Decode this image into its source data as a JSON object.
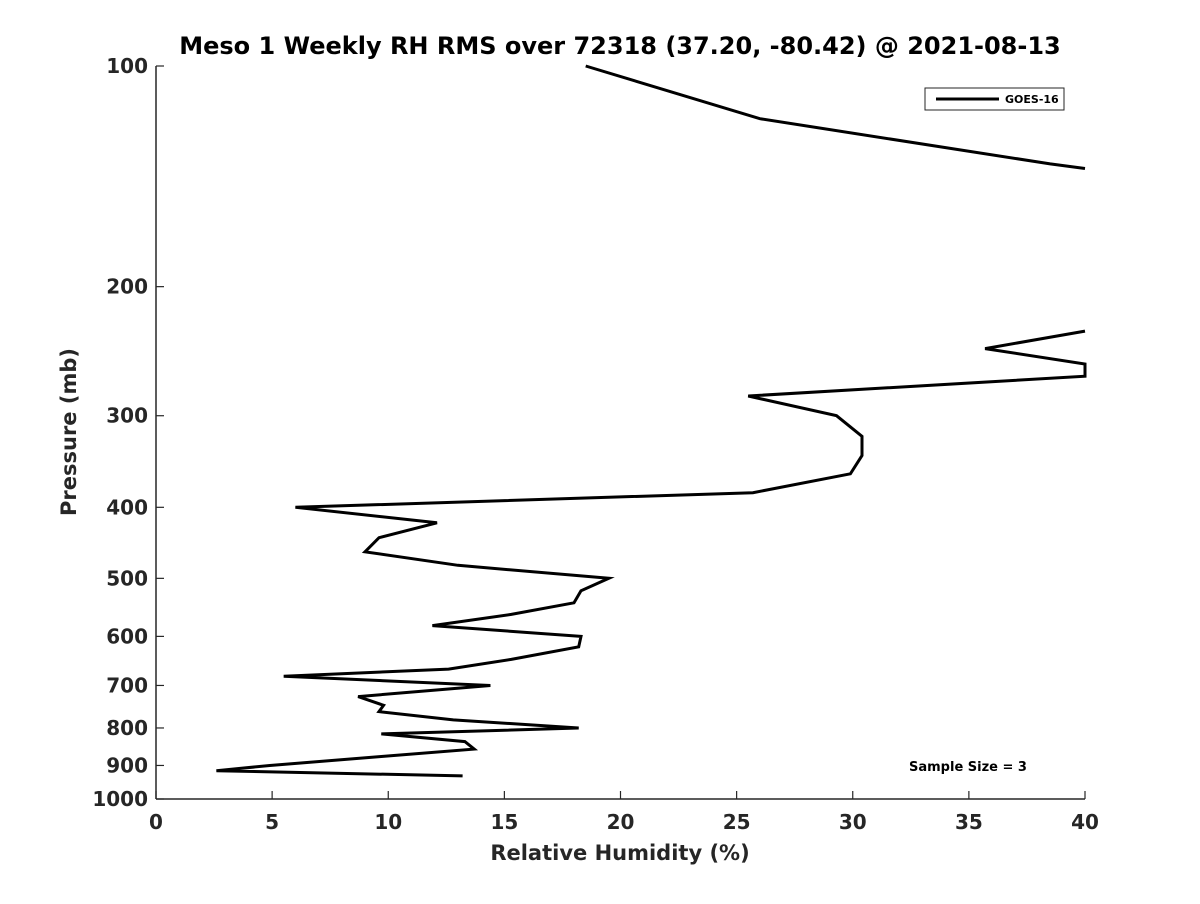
{
  "chart_data": {
    "type": "line",
    "title": "Meso 1 Weekly RH RMS over 72318 (37.20, -80.42) @ 2021-08-13",
    "xlabel": "Relative Humidity (%)",
    "ylabel": "Pressure (mb)",
    "xlim": [
      0,
      40
    ],
    "ylim": [
      100,
      1000
    ],
    "y_scale": "log",
    "y_reversed": true,
    "grid": false,
    "legend_position": "top-right",
    "x_ticks": [
      "0",
      "5",
      "10",
      "15",
      "20",
      "25",
      "30",
      "35",
      "40"
    ],
    "y_ticks": [
      "100",
      "200",
      "300",
      "400",
      "500",
      "600",
      "700",
      "800",
      "900",
      "1000"
    ],
    "annotation": "Sample Size = 3",
    "series": [
      {
        "name": "GOES-16",
        "color": "#000000",
        "segments": [
          [
            {
              "x": 18.5,
              "p": 100
            },
            {
              "x": 26.0,
              "p": 118
            },
            {
              "x": 38.5,
              "p": 136
            },
            {
              "x": 40.0,
              "p": 138
            }
          ],
          [
            {
              "x": 40.0,
              "p": 230
            },
            {
              "x": 35.7,
              "p": 243
            },
            {
              "x": 40.0,
              "p": 255
            },
            {
              "x": 40.0,
              "p": 265
            },
            {
              "x": 25.5,
              "p": 282
            },
            {
              "x": 29.3,
              "p": 300
            },
            {
              "x": 30.4,
              "p": 320
            },
            {
              "x": 30.4,
              "p": 340
            },
            {
              "x": 29.9,
              "p": 360
            },
            {
              "x": 25.7,
              "p": 382
            },
            {
              "x": 6.0,
              "p": 400
            },
            {
              "x": 12.1,
              "p": 420
            },
            {
              "x": 9.6,
              "p": 440
            },
            {
              "x": 9.0,
              "p": 460
            },
            {
              "x": 13.0,
              "p": 480
            },
            {
              "x": 19.5,
              "p": 500
            },
            {
              "x": 18.3,
              "p": 520
            },
            {
              "x": 18.0,
              "p": 540
            },
            {
              "x": 15.3,
              "p": 560
            },
            {
              "x": 11.9,
              "p": 580
            },
            {
              "x": 18.3,
              "p": 600
            },
            {
              "x": 18.2,
              "p": 620
            },
            {
              "x": 15.3,
              "p": 645
            },
            {
              "x": 12.6,
              "p": 665
            },
            {
              "x": 5.5,
              "p": 680
            },
            {
              "x": 14.4,
              "p": 700
            },
            {
              "x": 8.7,
              "p": 725
            },
            {
              "x": 9.8,
              "p": 745
            },
            {
              "x": 9.6,
              "p": 760
            },
            {
              "x": 12.8,
              "p": 780
            },
            {
              "x": 18.2,
              "p": 800
            },
            {
              "x": 9.7,
              "p": 815
            },
            {
              "x": 13.3,
              "p": 835
            },
            {
              "x": 13.7,
              "p": 855
            },
            {
              "x": 9.7,
              "p": 875
            },
            {
              "x": 4.9,
              "p": 900
            },
            {
              "x": 2.6,
              "p": 915
            },
            {
              "x": 13.2,
              "p": 930
            }
          ]
        ]
      }
    ]
  }
}
